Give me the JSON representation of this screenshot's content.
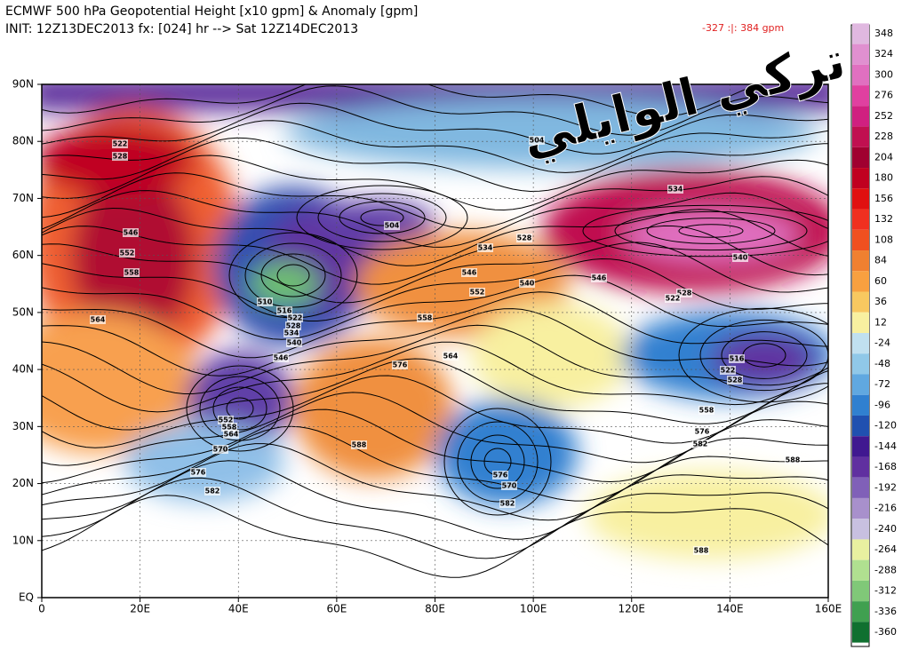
{
  "header": {
    "line1": "ECMWF 500 hPa Geopotential Height [x10 gpm] & Anomaly [gpm]",
    "line2": "INIT: 12Z13DEC2013 fx: [024] hr --> Sat 12Z14DEC2013",
    "extremes": "-327 :|: 384 gpm"
  },
  "watermark": "تركي الوايلي",
  "lat_labels": [
    "90N",
    "80N",
    "70N",
    "60N",
    "50N",
    "40N",
    "30N",
    "20N",
    "10N",
    "EQ"
  ],
  "lon_labels": [
    "0",
    "20E",
    "40E",
    "60E",
    "80E",
    "100E",
    "120E",
    "140E",
    "160E"
  ],
  "contour_labels": [
    "522",
    "528",
    "546",
    "552",
    "558",
    "564",
    "510",
    "516",
    "522",
    "528",
    "534",
    "540",
    "546",
    "504",
    "534",
    "528",
    "546",
    "552",
    "540",
    "558",
    "564",
    "576",
    "504",
    "534",
    "540",
    "546",
    "528",
    "522",
    "516",
    "522",
    "528",
    "558",
    "576",
    "582",
    "588",
    "588",
    "552",
    "558",
    "564",
    "570",
    "576",
    "582",
    "576",
    "570",
    "582",
    "588"
  ],
  "colorbar": {
    "ticks": [
      348,
      324,
      300,
      276,
      252,
      228,
      204,
      180,
      156,
      132,
      108,
      84,
      60,
      36,
      12,
      -24,
      -48,
      -72,
      -96,
      -120,
      -144,
      -168,
      -192,
      -216,
      -240,
      -264,
      -288,
      -312,
      -336,
      -360
    ],
    "colors": [
      "#e0b8e0",
      "#e090d0",
      "#e070c0",
      "#e040a0",
      "#d02080",
      "#c01050",
      "#a00030",
      "#c00020",
      "#e01010",
      "#f03020",
      "#f05020",
      "#f08030",
      "#f8a040",
      "#f8c860",
      "#f8f0a0",
      "#c0e0f0",
      "#90c8e8",
      "#60a8e0",
      "#3080d0",
      "#2050b0",
      "#401890",
      "#6030a0",
      "#8060b8",
      "#a890cc",
      "#c8c0e0",
      "#e8f0a0",
      "#b0e090",
      "#80c878",
      "#40a050",
      "#107030"
    ]
  }
}
